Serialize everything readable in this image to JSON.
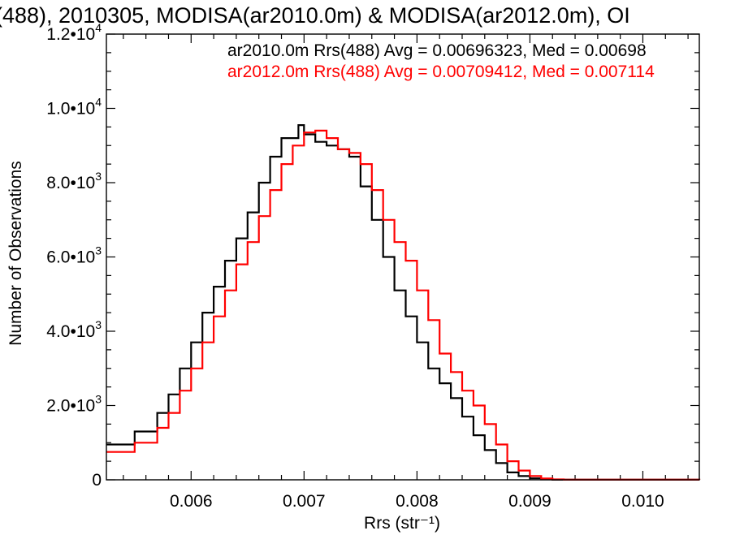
{
  "chart_data": {
    "type": "line",
    "title": "(488), 2010305, MODISA(ar2010.0m) & MODISA(ar2012.0m), OI",
    "xlabel": "Rrs (str⁻¹)",
    "ylabel": "Number of Observations",
    "xlim": [
      0.00525,
      0.0105
    ],
    "ylim": [
      0,
      12000
    ],
    "x_ticks": [
      0.006,
      0.007,
      0.008,
      0.009,
      0.01
    ],
    "x_tick_labels": [
      "0.006",
      "0.007",
      "0.008",
      "0.009",
      "0.010"
    ],
    "y_ticks": [
      0,
      2000,
      4000,
      6000,
      8000,
      10000,
      12000
    ],
    "y_tick_labels": [
      {
        "mant": "0",
        "exp": ""
      },
      {
        "mant": "2.0•10",
        "exp": "3"
      },
      {
        "mant": "4.0•10",
        "exp": "3"
      },
      {
        "mant": "6.0•10",
        "exp": "3"
      },
      {
        "mant": "8.0•10",
        "exp": "3"
      },
      {
        "mant": "1.0•10",
        "exp": "4"
      },
      {
        "mant": "1.2•10",
        "exp": "4"
      }
    ],
    "grid": false,
    "legend_position": "top-right",
    "series": [
      {
        "name": "ar2010.0m Rrs(488) Avg = 0.00696323, Med = 0.00698",
        "color": "#000000",
        "points": [
          [
            0.00525,
            950
          ],
          [
            0.0055,
            1300
          ],
          [
            0.0057,
            1800
          ],
          [
            0.0058,
            2300
          ],
          [
            0.0059,
            3000
          ],
          [
            0.006,
            3700
          ],
          [
            0.0061,
            4500
          ],
          [
            0.0062,
            5200
          ],
          [
            0.0063,
            5900
          ],
          [
            0.0064,
            6500
          ],
          [
            0.0065,
            7200
          ],
          [
            0.0066,
            8000
          ],
          [
            0.0067,
            8700
          ],
          [
            0.0068,
            9200
          ],
          [
            0.00695,
            9550
          ],
          [
            0.007,
            9300
          ],
          [
            0.0071,
            9100
          ],
          [
            0.0072,
            9000
          ],
          [
            0.0073,
            8900
          ],
          [
            0.0074,
            8700
          ],
          [
            0.0075,
            7900
          ],
          [
            0.0076,
            7000
          ],
          [
            0.0077,
            6000
          ],
          [
            0.0078,
            5100
          ],
          [
            0.0079,
            4400
          ],
          [
            0.008,
            3700
          ],
          [
            0.0081,
            3000
          ],
          [
            0.0082,
            2600
          ],
          [
            0.0083,
            2200
          ],
          [
            0.0084,
            1700
          ],
          [
            0.0085,
            1200
          ],
          [
            0.0086,
            800
          ],
          [
            0.0087,
            450
          ],
          [
            0.0088,
            200
          ],
          [
            0.0089,
            100
          ],
          [
            0.009,
            40
          ],
          [
            0.0091,
            10
          ],
          [
            0.0092,
            3
          ],
          [
            0.0105,
            0
          ]
        ]
      },
      {
        "name": "ar2012.0m Rrs(488) Avg = 0.00709412, Med = 0.007114",
        "color": "#ff0000",
        "points": [
          [
            0.00525,
            750
          ],
          [
            0.0055,
            1000
          ],
          [
            0.0057,
            1400
          ],
          [
            0.0058,
            1800
          ],
          [
            0.0059,
            2400
          ],
          [
            0.006,
            3000
          ],
          [
            0.0061,
            3700
          ],
          [
            0.0062,
            4400
          ],
          [
            0.0063,
            5100
          ],
          [
            0.0064,
            5800
          ],
          [
            0.0065,
            6400
          ],
          [
            0.0066,
            7100
          ],
          [
            0.0067,
            7800
          ],
          [
            0.0068,
            8500
          ],
          [
            0.0069,
            9000
          ],
          [
            0.007,
            9350
          ],
          [
            0.0071,
            9400
          ],
          [
            0.0072,
            9200
          ],
          [
            0.0073,
            8900
          ],
          [
            0.0074,
            8800
          ],
          [
            0.0075,
            8500
          ],
          [
            0.0076,
            7800
          ],
          [
            0.0077,
            7000
          ],
          [
            0.0078,
            6400
          ],
          [
            0.0079,
            5900
          ],
          [
            0.008,
            5100
          ],
          [
            0.0081,
            4300
          ],
          [
            0.0082,
            3400
          ],
          [
            0.0083,
            2900
          ],
          [
            0.0084,
            2400
          ],
          [
            0.0085,
            2000
          ],
          [
            0.0086,
            1500
          ],
          [
            0.0087,
            950
          ],
          [
            0.0088,
            500
          ],
          [
            0.0089,
            250
          ],
          [
            0.009,
            100
          ],
          [
            0.0091,
            35
          ],
          [
            0.0092,
            10
          ],
          [
            0.0093,
            3
          ],
          [
            0.0105,
            0
          ]
        ]
      }
    ]
  }
}
